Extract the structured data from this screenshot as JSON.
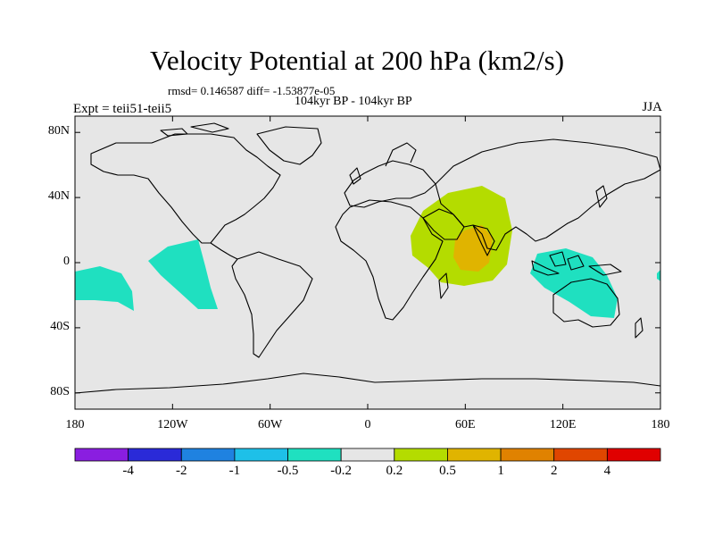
{
  "title": "Velocity Potential at 200 hPa (km2/s)",
  "stats_line": "rmsd= 0.146587 diff= -1.53877e-05",
  "period": "104kyr BP - 104kyr BP",
  "experiment": "Expt = teii51-teii5",
  "season": "JJA",
  "map": {
    "lat_labels": [
      "80N",
      "40N",
      "0",
      "40S",
      "80S"
    ],
    "lat_values": [
      80,
      40,
      0,
      -40,
      -80
    ],
    "lon_labels": [
      "180",
      "120W",
      "60W",
      "0",
      "60E",
      "120E",
      "180"
    ],
    "lon_values": [
      -180,
      -120,
      -60,
      0,
      60,
      120,
      180
    ],
    "background_color": "#e6e6e6"
  },
  "colorbar": {
    "colors": [
      "#8a1ee0",
      "#2a2ad8",
      "#1f82e0",
      "#1ec0e8",
      "#1fe0c0",
      "#e6e6e6",
      "#b4dc00",
      "#e0b400",
      "#e08200",
      "#e04600",
      "#e00000"
    ],
    "labels": [
      "-4",
      "-2",
      "-1",
      "-0.5",
      "-0.2",
      "0.2",
      "0.5",
      "1",
      "2",
      "4"
    ]
  }
}
